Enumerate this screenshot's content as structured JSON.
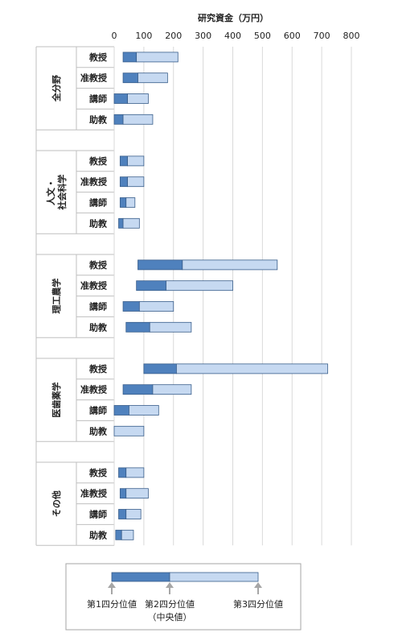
{
  "chart_data": {
    "type": "bar",
    "subtype": "horizontal-quartile-range",
    "title": "研究資金（万円）",
    "xlim": [
      0,
      800
    ],
    "xticks": [
      "0",
      "100",
      "200",
      "300",
      "400",
      "500",
      "600",
      "700",
      "800"
    ],
    "grid": true,
    "colors": {
      "lower": "#4f81bd",
      "upper": "#c6d9f1",
      "border": "#385d8a"
    },
    "groups": [
      {
        "name": "全分野",
        "rows": [
          {
            "label": "教授",
            "q1": 30,
            "median": 75,
            "q3": 215
          },
          {
            "label": "准教授",
            "q1": 30,
            "median": 80,
            "q3": 180
          },
          {
            "label": "講師",
            "q1": 0,
            "median": 45,
            "q3": 115
          },
          {
            "label": "助教",
            "q1": 0,
            "median": 30,
            "q3": 130
          }
        ]
      },
      {
        "name": "人文・社会科学",
        "rows": [
          {
            "label": "教授",
            "q1": 20,
            "median": 45,
            "q3": 100
          },
          {
            "label": "准教授",
            "q1": 20,
            "median": 45,
            "q3": 100
          },
          {
            "label": "講師",
            "q1": 20,
            "median": 40,
            "q3": 70
          },
          {
            "label": "助教",
            "q1": 15,
            "median": 30,
            "q3": 85
          }
        ]
      },
      {
        "name": "理工農学",
        "rows": [
          {
            "label": "教授",
            "q1": 80,
            "median": 230,
            "q3": 550
          },
          {
            "label": "准教授",
            "q1": 75,
            "median": 175,
            "q3": 400
          },
          {
            "label": "講師",
            "q1": 30,
            "median": 85,
            "q3": 200
          },
          {
            "label": "助教",
            "q1": 40,
            "median": 120,
            "q3": 260
          }
        ]
      },
      {
        "name": "医歯薬学",
        "rows": [
          {
            "label": "教授",
            "q1": 100,
            "median": 210,
            "q3": 720
          },
          {
            "label": "准教授",
            "q1": 30,
            "median": 130,
            "q3": 260
          },
          {
            "label": "講師",
            "q1": 0,
            "median": 50,
            "q3": 150
          },
          {
            "label": "助教",
            "q1": 0,
            "median": 0,
            "q3": 100
          }
        ]
      },
      {
        "name": "その他",
        "rows": [
          {
            "label": "教授",
            "q1": 15,
            "median": 40,
            "q3": 100
          },
          {
            "label": "准教授",
            "q1": 20,
            "median": 40,
            "q3": 115
          },
          {
            "label": "講師",
            "q1": 15,
            "median": 40,
            "q3": 90
          },
          {
            "label": "助教",
            "q1": 5,
            "median": 25,
            "q3": 65
          }
        ]
      }
    ],
    "legend": {
      "q1": "第1四分位値",
      "median": "第2四分位値",
      "median_note": "（中央値）",
      "q3": "第3四分位値"
    }
  }
}
